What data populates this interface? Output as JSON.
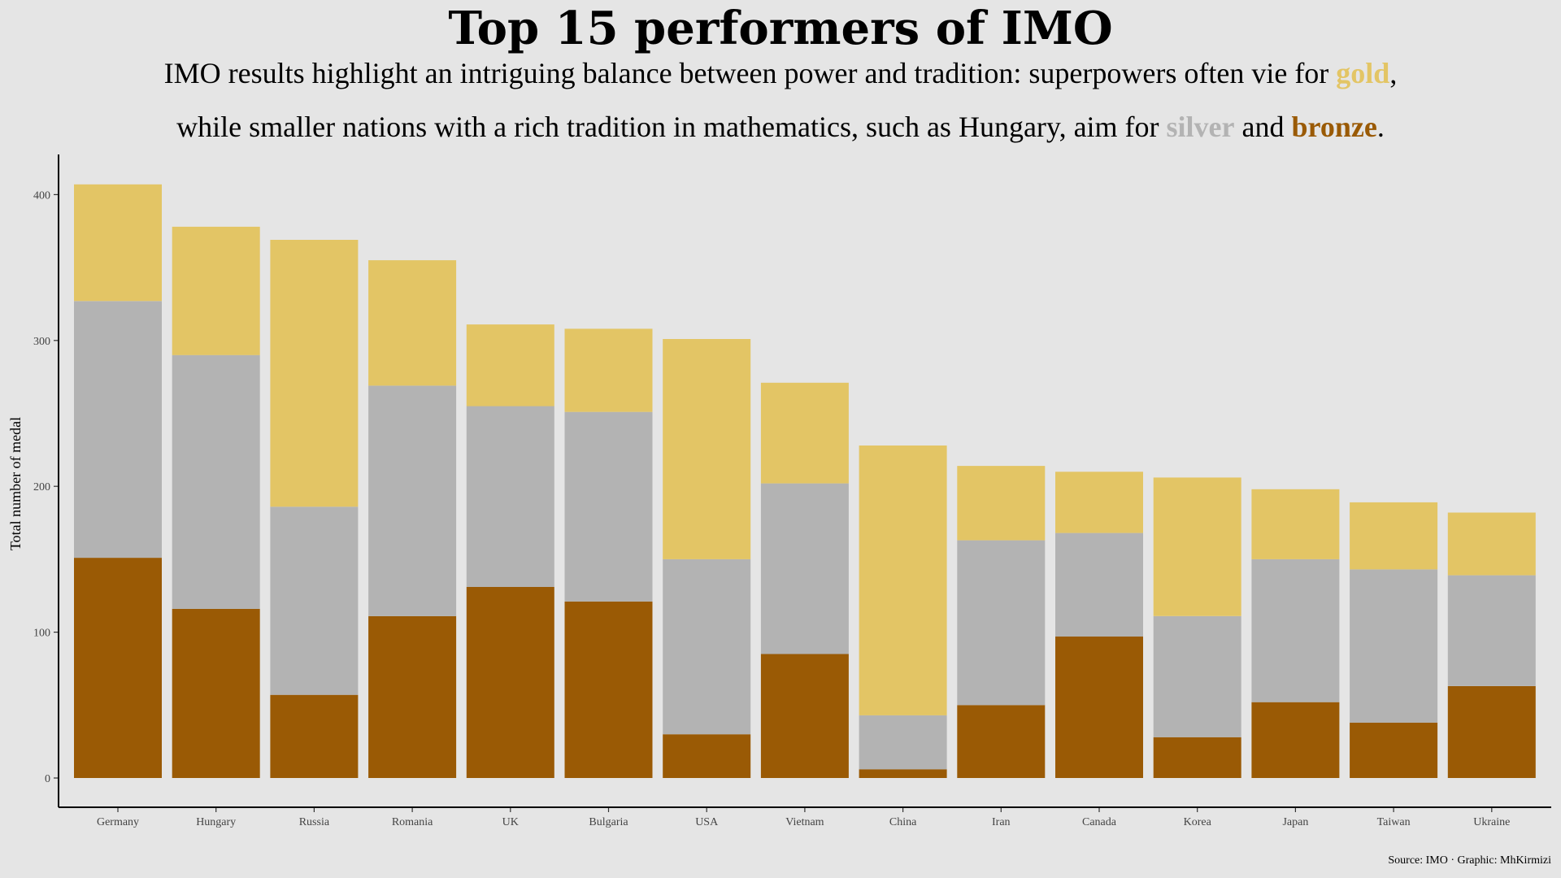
{
  "chart_data": {
    "type": "bar",
    "stacked": true,
    "title": "Top 15 performers of IMO",
    "subtitle_line1": {
      "pre": "IMO results highlight an intriguing balance between power and tradition: superpowers often vie for ",
      "gold_word": "gold",
      "post": ","
    },
    "subtitle_line2": {
      "pre": "while smaller nations with a rich tradition in mathematics, such as Hungary, aim for ",
      "silver_word": "silver",
      "mid": " and ",
      "bronze_word": "bronze",
      "post": "."
    },
    "xlabel": "",
    "ylabel": "Total number of medal",
    "ylim": [
      0,
      420
    ],
    "yticks": [
      0,
      100,
      200,
      300,
      400
    ],
    "categories": [
      "Germany",
      "Hungary",
      "Russia",
      "Romania",
      "UK",
      "Bulgaria",
      "USA",
      "Vietnam",
      "China",
      "Iran",
      "Canada",
      "Korea",
      "Japan",
      "Taiwan",
      "Ukraine"
    ],
    "series": [
      {
        "name": "bronze",
        "color": "#9a5a05",
        "values": [
          151,
          116,
          57,
          111,
          131,
          121,
          30,
          85,
          6,
          50,
          97,
          28,
          52,
          38,
          63
        ]
      },
      {
        "name": "silver",
        "color": "#b3b3b3",
        "values": [
          176,
          174,
          129,
          158,
          124,
          130,
          120,
          117,
          37,
          113,
          71,
          83,
          98,
          105,
          76
        ]
      },
      {
        "name": "gold",
        "color": "#e3c565",
        "values": [
          80,
          88,
          183,
          86,
          56,
          57,
          151,
          69,
          185,
          51,
          42,
          95,
          48,
          46,
          43
        ]
      }
    ],
    "legend": "none",
    "grid": false,
    "caption": "Source: IMO · Graphic: MhKirmizi"
  }
}
